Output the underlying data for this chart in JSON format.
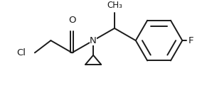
{
  "bg_color": "#ffffff",
  "line_color": "#1a1a1a",
  "line_width": 1.4,
  "font_size": 9.5,
  "xlim": [
    -0.5,
    5.8
  ],
  "ylim": [
    -1.5,
    1.8
  ],
  "figsize": [
    2.98,
    1.48
  ],
  "dpi": 100
}
